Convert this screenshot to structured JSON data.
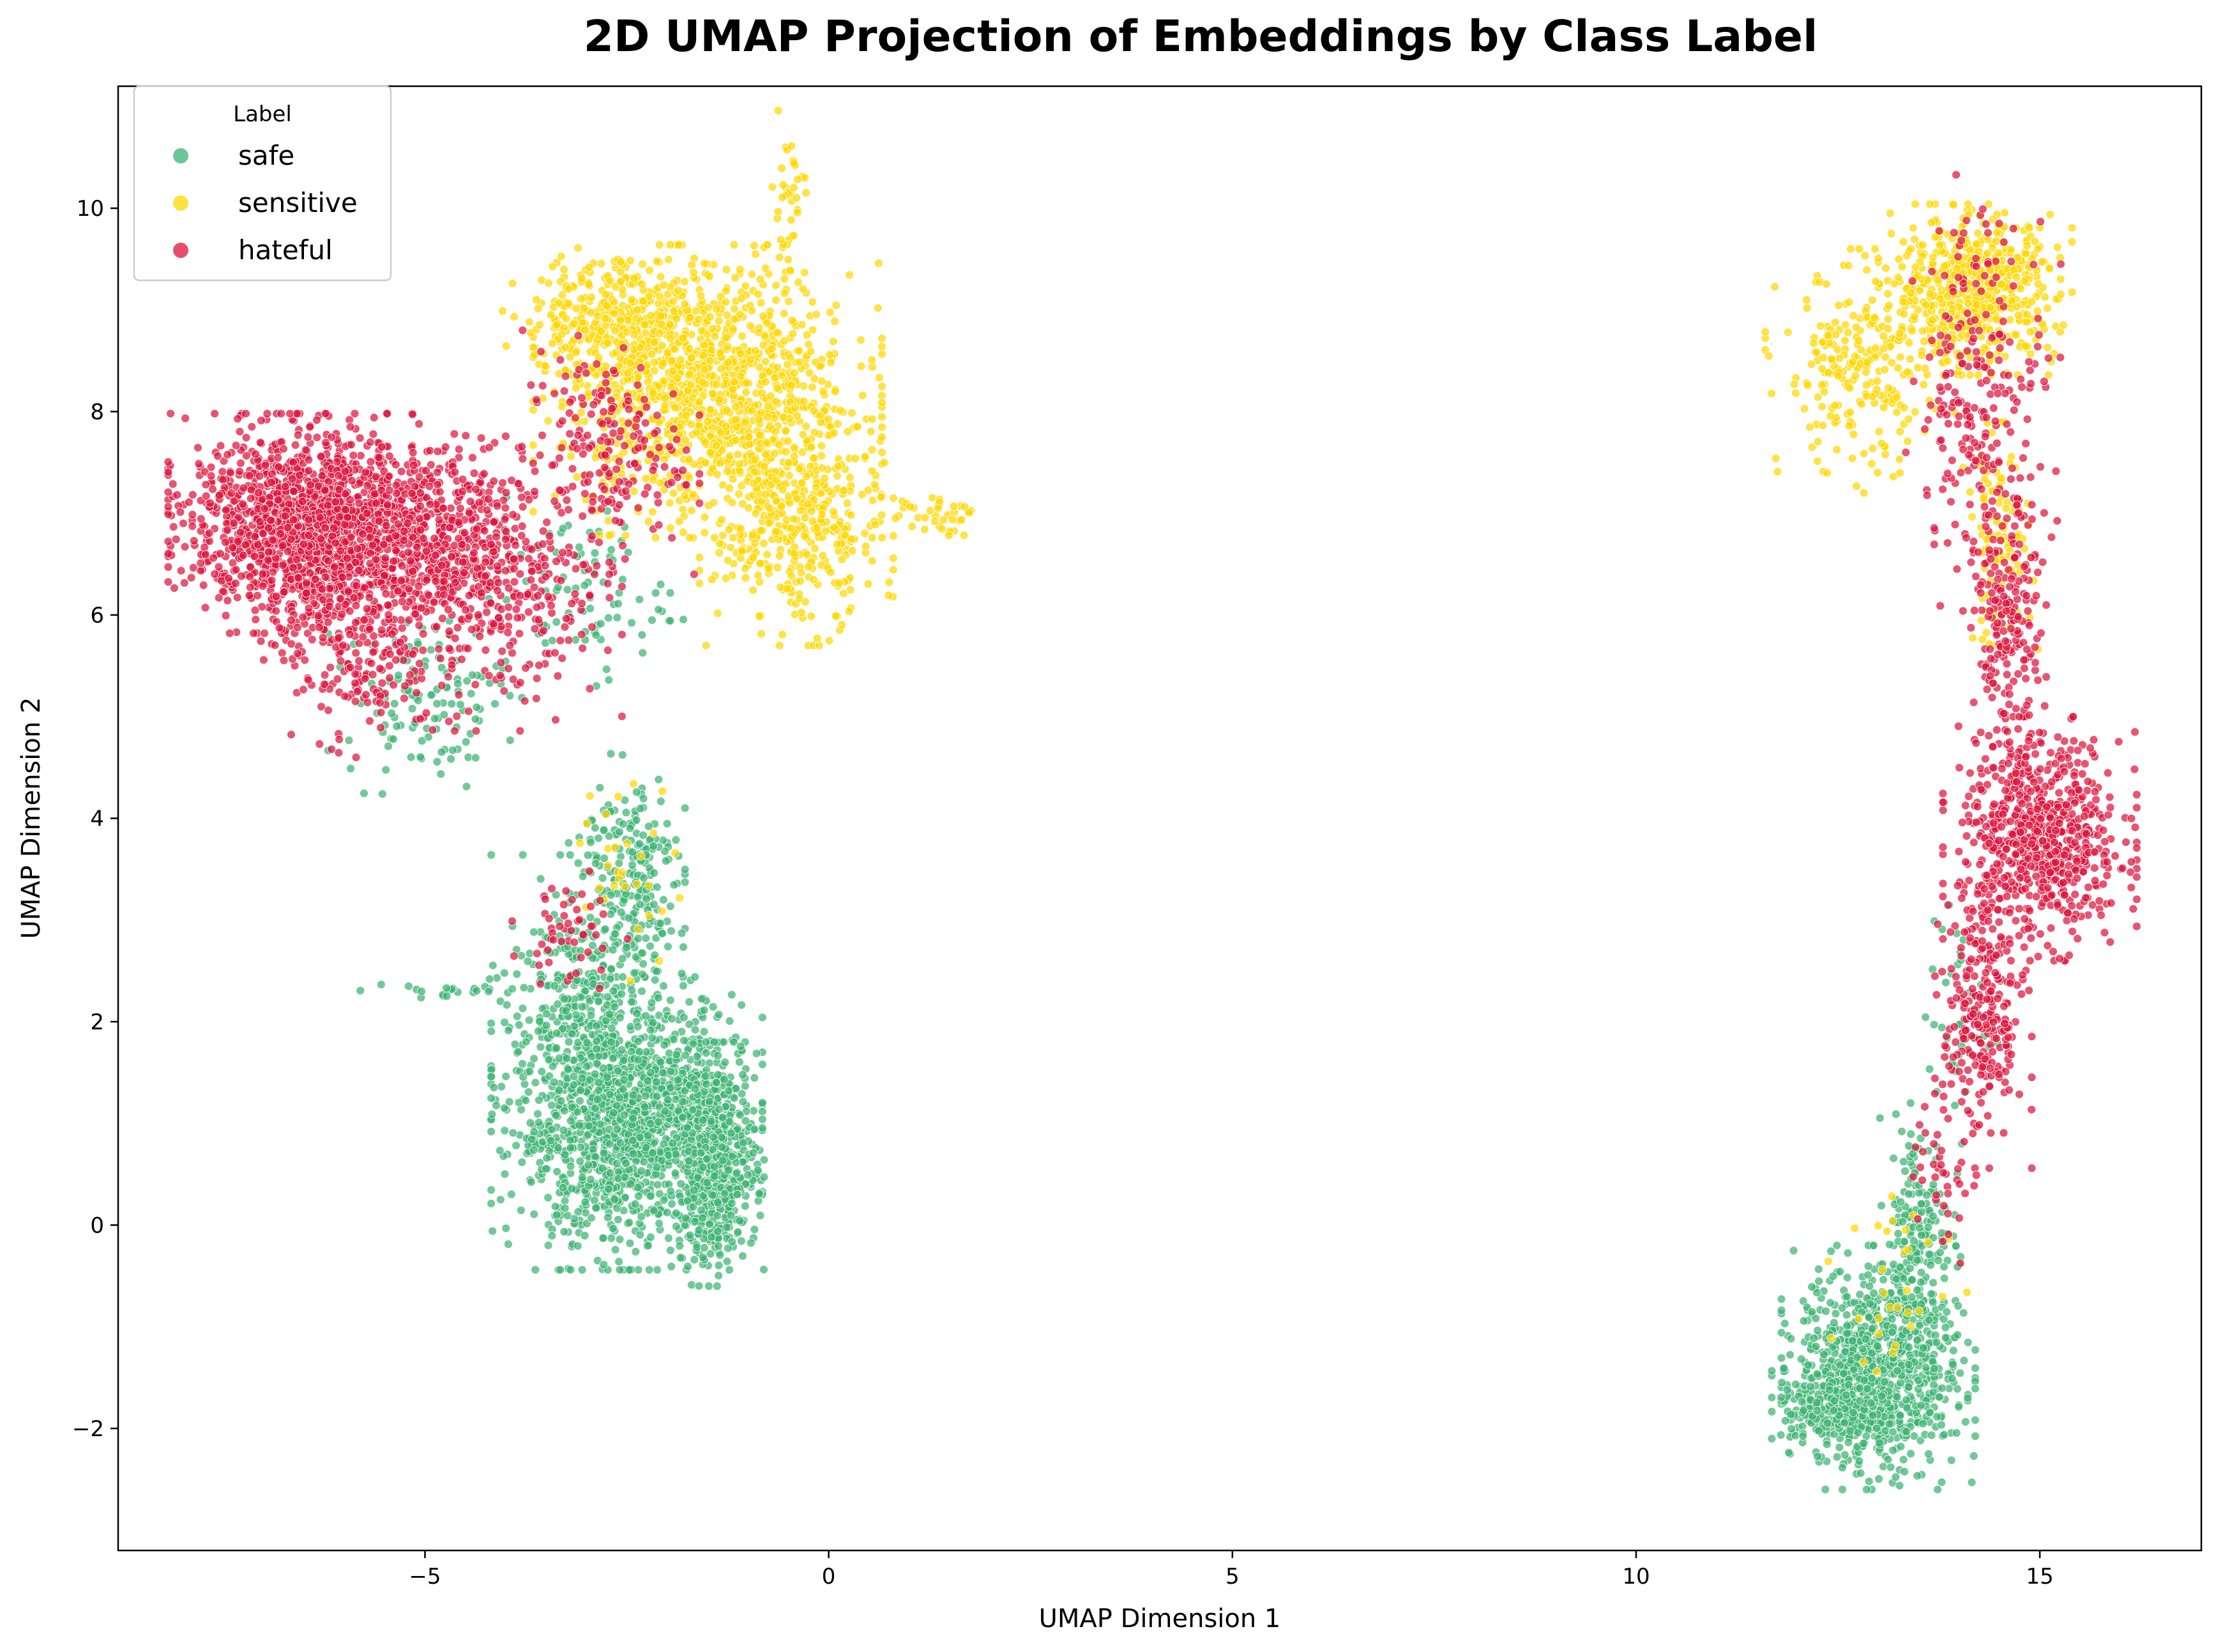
{
  "chart_data": {
    "type": "scatter",
    "title": "2D UMAP Projection of Embeddings by Class Label",
    "xlabel": "UMAP Dimension 1",
    "ylabel": "UMAP Dimension 2",
    "xlim": [
      -8.8,
      17.0
    ],
    "ylim": [
      -3.2,
      11.2
    ],
    "xticks": [
      -5,
      0,
      5,
      10,
      15
    ],
    "yticks": [
      -2,
      0,
      2,
      4,
      6,
      8,
      10
    ],
    "grid": false,
    "legend": {
      "title": "Label",
      "placement": "top-left",
      "entries": [
        "safe",
        "sensitive",
        "hateful"
      ]
    },
    "series": [
      {
        "name": "safe",
        "color": "#3cb371",
        "clusters": [
          {
            "center": [
              -2.5,
              1.0
            ],
            "spread": [
              0.7,
              0.6
            ],
            "count": 1400
          },
          {
            "center": [
              -1.4,
              0.6
            ],
            "spread": [
              0.25,
              0.5
            ],
            "count": 500
          },
          {
            "center": [
              -2.5,
              3.5
            ],
            "spread": [
              0.3,
              0.5
            ],
            "count": 200
          },
          {
            "center": [
              -3.0,
              2.2
            ],
            "spread": [
              0.5,
              0.6
            ],
            "count": 300
          },
          {
            "center": [
              13.0,
              -1.4
            ],
            "spread": [
              0.5,
              0.5
            ],
            "count": 900
          },
          {
            "center": [
              12.4,
              -1.8
            ],
            "spread": [
              0.3,
              0.2
            ],
            "count": 200
          },
          {
            "center": [
              13.5,
              0.0
            ],
            "spread": [
              0.2,
              0.5
            ],
            "count": 150
          },
          {
            "center": [
              -5.0,
              5.2
            ],
            "spread": [
              0.5,
              0.4
            ],
            "count": 120
          },
          {
            "center": [
              -3.0,
              6.2
            ],
            "spread": [
              0.5,
              0.4
            ],
            "count": 80
          },
          {
            "center": [
              14.0,
              2.0
            ],
            "spread": [
              0.2,
              0.5
            ],
            "count": 40
          },
          {
            "center": [
              -4.8,
              2.3
            ],
            "spread": [
              0.5,
              0.05
            ],
            "count": 20
          }
        ]
      },
      {
        "name": "sensitive",
        "color": "#ffd700",
        "clusters": [
          {
            "center": [
              -1.5,
              8.2
            ],
            "spread": [
              0.9,
              0.6
            ],
            "count": 1100
          },
          {
            "center": [
              -0.4,
              6.9
            ],
            "spread": [
              0.5,
              0.5
            ],
            "count": 400
          },
          {
            "center": [
              -2.6,
              8.9
            ],
            "spread": [
              0.6,
              0.3
            ],
            "count": 300
          },
          {
            "center": [
              1.2,
              7.0
            ],
            "spread": [
              0.3,
              0.1
            ],
            "count": 40
          },
          {
            "center": [
              -0.5,
              10.0
            ],
            "spread": [
              0.1,
              0.4
            ],
            "count": 40
          },
          {
            "center": [
              14.2,
              9.2
            ],
            "spread": [
              0.5,
              0.35
            ],
            "count": 600
          },
          {
            "center": [
              12.8,
              8.4
            ],
            "spread": [
              0.5,
              0.5
            ],
            "count": 250
          },
          {
            "center": [
              14.5,
              6.7
            ],
            "spread": [
              0.2,
              0.5
            ],
            "count": 100
          },
          {
            "center": [
              -2.5,
              3.5
            ],
            "spread": [
              0.3,
              0.5
            ],
            "count": 30
          },
          {
            "center": [
              13.2,
              -0.5
            ],
            "spread": [
              0.4,
              0.5
            ],
            "count": 30
          }
        ]
      },
      {
        "name": "hateful",
        "color": "#dc143c",
        "clusters": [
          {
            "center": [
              -6.5,
              6.9
            ],
            "spread": [
              0.7,
              0.45
            ],
            "count": 1400
          },
          {
            "center": [
              -5.0,
              6.7
            ],
            "spread": [
              0.6,
              0.45
            ],
            "count": 500
          },
          {
            "center": [
              -4.0,
              6.3
            ],
            "spread": [
              0.6,
              0.6
            ],
            "count": 300
          },
          {
            "center": [
              -2.8,
              7.6
            ],
            "spread": [
              0.5,
              0.5
            ],
            "count": 200
          },
          {
            "center": [
              -5.9,
              5.8
            ],
            "spread": [
              0.5,
              0.5
            ],
            "count": 250
          },
          {
            "center": [
              15.0,
              3.8
            ],
            "spread": [
              0.5,
              0.5
            ],
            "count": 700
          },
          {
            "center": [
              14.3,
              2.0
            ],
            "spread": [
              0.25,
              0.6
            ],
            "count": 250
          },
          {
            "center": [
              14.6,
              5.8
            ],
            "spread": [
              0.2,
              0.6
            ],
            "count": 200
          },
          {
            "center": [
              14.3,
              8.2
            ],
            "spread": [
              0.4,
              0.9
            ],
            "count": 250
          },
          {
            "center": [
              13.8,
              0.5
            ],
            "spread": [
              0.2,
              0.4
            ],
            "count": 40
          },
          {
            "center": [
              -3.2,
              2.9
            ],
            "spread": [
              0.3,
              0.3
            ],
            "count": 50
          }
        ]
      }
    ]
  }
}
